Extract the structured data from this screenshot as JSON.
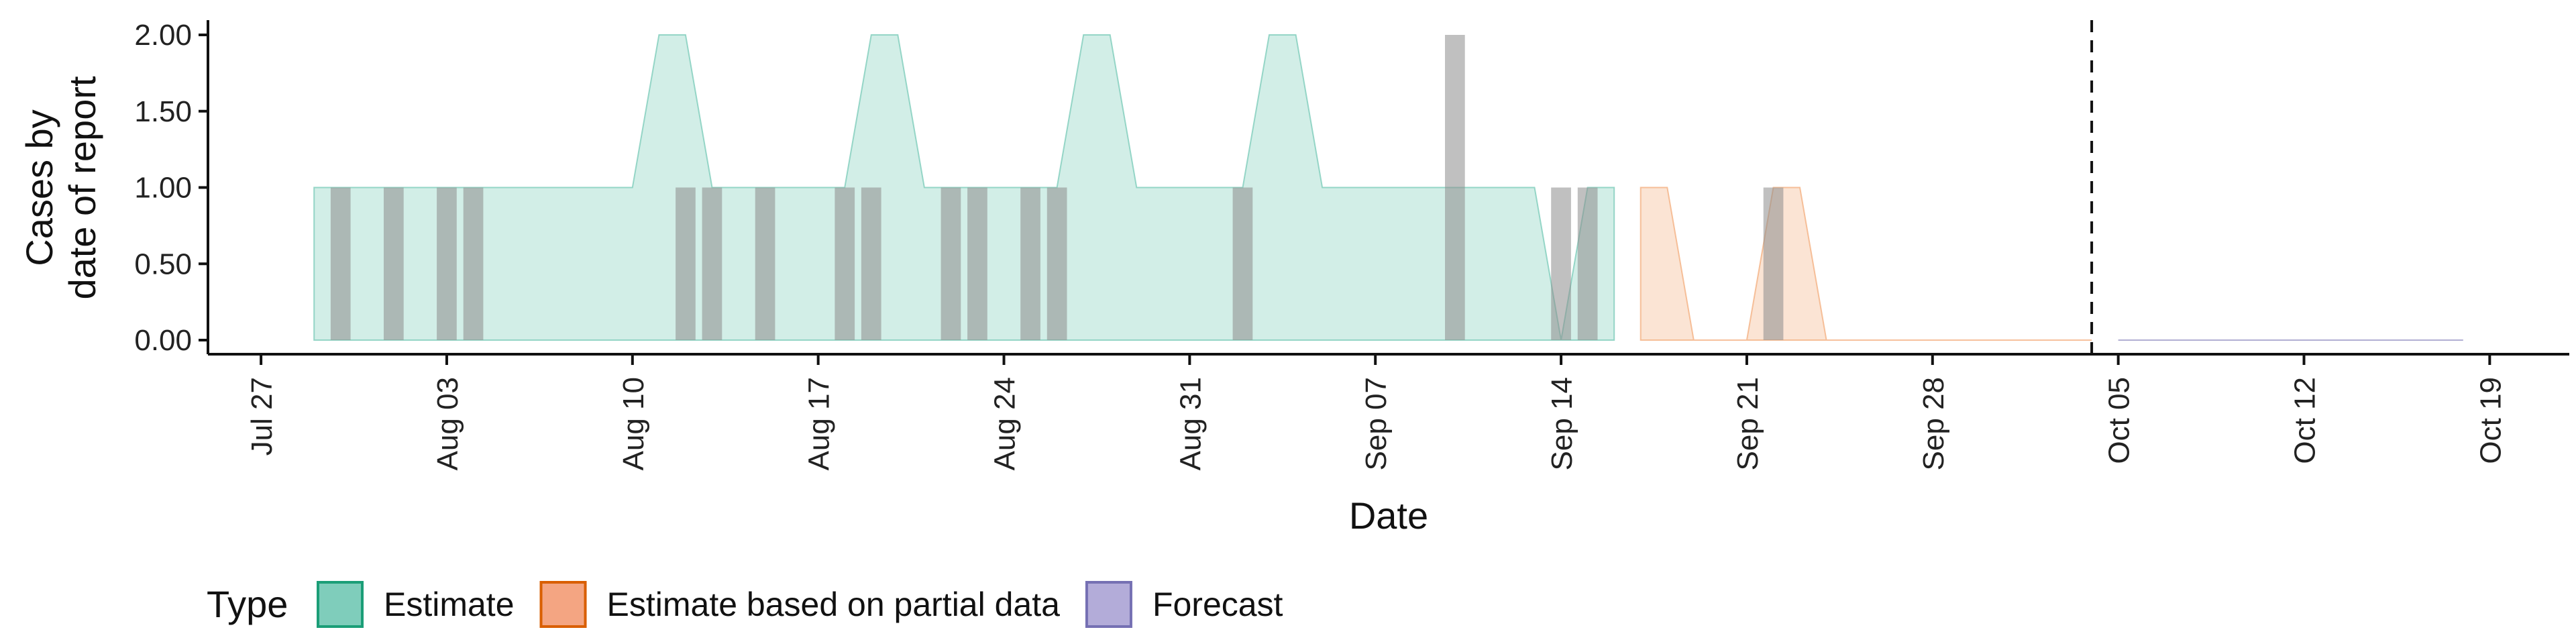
{
  "chart_data": {
    "type": "area",
    "xlabel": "Date",
    "ylabel_lines": [
      "Cases by",
      "date of report"
    ],
    "y_ticks": [
      "0.00",
      "0.50",
      "1.00",
      "1.50",
      "2.00"
    ],
    "y_tick_values": [
      0,
      0.5,
      1,
      1.5,
      2
    ],
    "ylim": [
      0,
      2.1
    ],
    "x_ticks": [
      "Jul 27",
      "Aug 03",
      "Aug 10",
      "Aug 17",
      "Aug 24",
      "Aug 31",
      "Sep 07",
      "Sep 14",
      "Sep 21",
      "Sep 28",
      "Oct 05",
      "Oct 12",
      "Oct 19"
    ],
    "x_tick_dates": [
      "2020-07-27",
      "2020-08-03",
      "2020-08-10",
      "2020-08-17",
      "2020-08-24",
      "2020-08-31",
      "2020-09-07",
      "2020-09-14",
      "2020-09-21",
      "2020-09-28",
      "2020-10-05",
      "2020-10-12",
      "2020-10-19"
    ],
    "xlim": [
      "2020-07-25",
      "2020-10-22"
    ],
    "forecast_line_date": "2020-10-04",
    "series": [
      {
        "name": "Estimate",
        "color": "#7fcdbb",
        "x": [
          "2020-07-29",
          "2020-07-30",
          "2020-07-31",
          "2020-08-01",
          "2020-08-02",
          "2020-08-03",
          "2020-08-04",
          "2020-08-05",
          "2020-08-06",
          "2020-08-07",
          "2020-08-08",
          "2020-08-09",
          "2020-08-10",
          "2020-08-11",
          "2020-08-12",
          "2020-08-13",
          "2020-08-14",
          "2020-08-15",
          "2020-08-16",
          "2020-08-17",
          "2020-08-18",
          "2020-08-19",
          "2020-08-20",
          "2020-08-21",
          "2020-08-22",
          "2020-08-23",
          "2020-08-24",
          "2020-08-25",
          "2020-08-26",
          "2020-08-27",
          "2020-08-28",
          "2020-08-29",
          "2020-08-30",
          "2020-08-31",
          "2020-09-01",
          "2020-09-02",
          "2020-09-03",
          "2020-09-04",
          "2020-09-05",
          "2020-09-06",
          "2020-09-07",
          "2020-09-08",
          "2020-09-09",
          "2020-09-10",
          "2020-09-11",
          "2020-09-12",
          "2020-09-13",
          "2020-09-14",
          "2020-09-15",
          "2020-09-16"
        ],
        "values": [
          1,
          1,
          1,
          1,
          1,
          1,
          1,
          1,
          1,
          1,
          1,
          1,
          1,
          2,
          2,
          1,
          1,
          1,
          1,
          1,
          1,
          2,
          2,
          1,
          1,
          1,
          1,
          1,
          1,
          2,
          2,
          1,
          1,
          1,
          1,
          1,
          2,
          2,
          1,
          1,
          1,
          1,
          1,
          1,
          1,
          1,
          1,
          0,
          1,
          1
        ]
      },
      {
        "name": "Estimate based on partial data",
        "color": "#f4b183",
        "x": [
          "2020-09-17",
          "2020-09-18",
          "2020-09-19",
          "2020-09-20",
          "2020-09-21",
          "2020-09-22",
          "2020-09-23",
          "2020-09-24",
          "2020-09-25",
          "2020-09-26",
          "2020-09-27",
          "2020-09-28",
          "2020-09-29",
          "2020-09-30",
          "2020-10-01",
          "2020-10-02",
          "2020-10-03",
          "2020-10-04"
        ],
        "values": [
          1,
          1,
          0,
          0,
          0,
          1,
          1,
          0,
          0,
          0,
          0,
          0,
          0,
          0,
          0,
          0,
          0,
          0
        ]
      },
      {
        "name": "Forecast",
        "color": "#9e9ac8",
        "x": [
          "2020-10-05",
          "2020-10-06",
          "2020-10-07",
          "2020-10-08",
          "2020-10-09",
          "2020-10-10",
          "2020-10-11",
          "2020-10-12",
          "2020-10-13",
          "2020-10-14",
          "2020-10-15",
          "2020-10-16",
          "2020-10-17",
          "2020-10-18"
        ],
        "values": [
          0,
          0,
          0,
          0,
          0,
          0,
          0,
          0,
          0,
          0,
          0,
          0,
          0,
          0
        ]
      }
    ],
    "reported_cases": [
      {
        "date": "2020-07-30",
        "value": 1
      },
      {
        "date": "2020-08-01",
        "value": 1
      },
      {
        "date": "2020-08-03",
        "value": 1
      },
      {
        "date": "2020-08-04",
        "value": 1
      },
      {
        "date": "2020-08-12",
        "value": 1
      },
      {
        "date": "2020-08-13",
        "value": 1
      },
      {
        "date": "2020-08-15",
        "value": 1
      },
      {
        "date": "2020-08-18",
        "value": 1
      },
      {
        "date": "2020-08-19",
        "value": 1
      },
      {
        "date": "2020-08-22",
        "value": 1
      },
      {
        "date": "2020-08-23",
        "value": 1
      },
      {
        "date": "2020-08-25",
        "value": 1
      },
      {
        "date": "2020-08-26",
        "value": 1
      },
      {
        "date": "2020-09-02",
        "value": 1
      },
      {
        "date": "2020-09-10",
        "value": 2
      },
      {
        "date": "2020-09-14",
        "value": 1
      },
      {
        "date": "2020-09-15",
        "value": 1
      },
      {
        "date": "2020-09-22",
        "value": 1
      }
    ],
    "legend": {
      "title": "Type",
      "position": "bottom",
      "items": [
        {
          "label": "Estimate",
          "fill": "#7fcdbb",
          "stroke": "#1b9e77"
        },
        {
          "label": "Estimate based on partial data",
          "fill": "#f4a582",
          "stroke": "#d95f02"
        },
        {
          "label": "Forecast",
          "fill": "#b3acd9",
          "stroke": "#7570b3"
        }
      ]
    },
    "bar_color": "#8c8c8c"
  }
}
